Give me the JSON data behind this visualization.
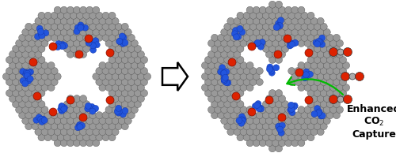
{
  "figsize": [
    5.0,
    1.94
  ],
  "dpi": 100,
  "background_color": "#ffffff",
  "annotation_text": "Enhanced\nCO$_2$\nCapture",
  "annotation_fontsize": 9.0,
  "annotation_fontweight": "bold",
  "green_arrow_color": "#00bb00",
  "green_arrow_lw": 1.6,
  "gray_ball": "#999999",
  "gray_edge": "#555555",
  "blue_ball": "#2255dd",
  "blue_edge": "#1133aa",
  "red_ball": "#dd2200",
  "red_edge": "#881100",
  "co2_gray": "#aaaaaa",
  "co2_red": "#dd2200"
}
